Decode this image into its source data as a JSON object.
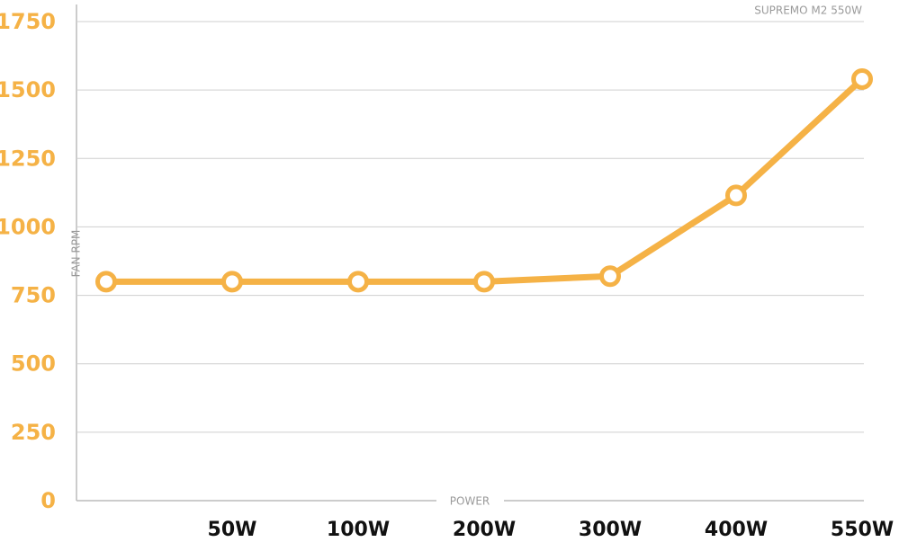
{
  "chart_data": {
    "type": "line",
    "title": "SUPREMO M2 550W",
    "x_label": "POWER",
    "y_label": "FAN RPM",
    "categories": [
      null,
      "50W",
      "100W",
      "200W",
      "300W",
      "400W",
      "550W"
    ],
    "series": [
      {
        "name": "SUPREMO M2 550W",
        "color": "#f5b246",
        "values": [
          800,
          800,
          800,
          800,
          820,
          1115,
          1540
        ]
      }
    ],
    "ylim": [
      0,
      1750
    ],
    "yticks": [
      0,
      250,
      500,
      750,
      1000,
      1250,
      1500,
      1750
    ],
    "grid": true
  }
}
